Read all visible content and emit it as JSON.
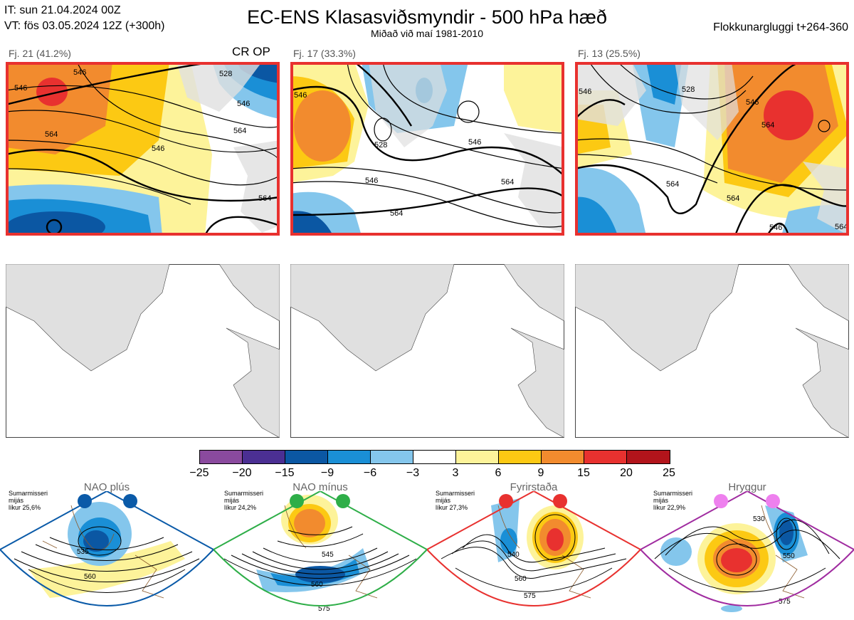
{
  "header": {
    "it_line": "IT: sun 21.04.2024 00Z",
    "vt_line": "VT: fös 03.05.2024 12Z  (+300h)",
    "title": "EC-ENS Klasasviðsmyndir - 500 hPa hæð",
    "subtitle": "Miðað við maí 1981-2010",
    "window": "Flokkunargluggi t+264-360"
  },
  "clusters": [
    {
      "label": "Fj. 21 (41.2%)",
      "tag": "CR OP",
      "contours": [
        "546",
        "546",
        "528",
        "546",
        "564",
        "546",
        "564",
        "564"
      ]
    },
    {
      "label": "Fj. 17 (33.3%)",
      "tag": "",
      "contours": [
        "546",
        "528",
        "546",
        "546",
        "564",
        "564"
      ]
    },
    {
      "label": "Fj. 13 (25.5%)",
      "tag": "",
      "contours": [
        "546",
        "528",
        "546",
        "564",
        "564",
        "564",
        "546",
        "564"
      ]
    }
  ],
  "colors": {
    "highlight": "#e8312f",
    "land": "#e0e0e0",
    "coast": "#8b5a2b",
    "nao_plus": "#0a5aa8",
    "nao_minus": "#2eae48",
    "block": "#e8312f",
    "ridge": "#a02ca0"
  },
  "legend": {
    "ticks": [
      "−25",
      "−20",
      "−15",
      "−9",
      "−6",
      "−3",
      "3",
      "6",
      "9",
      "15",
      "20",
      "25"
    ],
    "colors": [
      "#8a4a9e",
      "#4b2f93",
      "#0b57a3",
      "#1a8fd6",
      "#84c6ec",
      "#ffffff",
      "#fdf39a",
      "#fcc913",
      "#f28b2e",
      "#e8312f",
      "#b2141b"
    ]
  },
  "regimes": [
    {
      "name": "NAO plús",
      "info": [
        "Sumarmisseri",
        "mijás",
        "líkur 25,6%"
      ],
      "contours": [
        "535",
        "560"
      ]
    },
    {
      "name": "NAO mínus",
      "info": [
        "Sumarmisseri",
        "mijás",
        "líkur 24,2%"
      ],
      "contours": [
        "545",
        "560",
        "575"
      ]
    },
    {
      "name": "Fyrirstaða",
      "info": [
        "Sumarmisseri",
        "mijás",
        "líkur 27,3%"
      ],
      "contours": [
        "540",
        "560",
        "575"
      ]
    },
    {
      "name": "Hryggur",
      "info": [
        "Sumarmisseri",
        "mijás",
        "líkur 22,9%"
      ],
      "contours": [
        "530",
        "550",
        "575"
      ]
    }
  ]
}
